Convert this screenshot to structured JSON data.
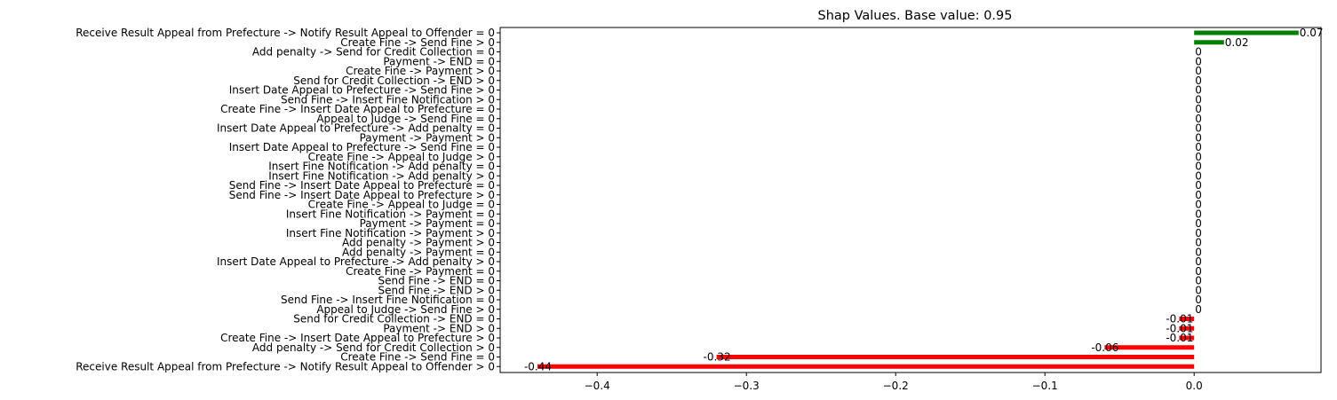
{
  "chart_data": {
    "type": "bar",
    "orientation": "horizontal",
    "title": "Shap Values. Base value: 0.95",
    "xlabel": "",
    "ylabel": "",
    "xlim": [
      -0.465,
      0.085
    ],
    "xticks": [
      -0.4,
      -0.3,
      -0.2,
      -0.1,
      0.0
    ],
    "xtick_labels": [
      "−0.4",
      "−0.3",
      "−0.2",
      "−0.1",
      "0.0"
    ],
    "grid": false,
    "colors": {
      "positive": "#008000",
      "negative": "#ff0000",
      "axis": "#000000"
    },
    "bars": [
      {
        "label": "Receive Result Appeal from Prefecture -> Notify Result Appeal to Offender = 0",
        "value": 0.07,
        "display": "0.07"
      },
      {
        "label": "Create Fine -> Send Fine > 0",
        "value": 0.02,
        "display": "0.02"
      },
      {
        "label": "Add penalty -> Send for Credit Collection = 0",
        "value": 0,
        "display": "0"
      },
      {
        "label": "Payment -> END = 0",
        "value": 0,
        "display": "0"
      },
      {
        "label": "Create Fine -> Payment > 0",
        "value": 0,
        "display": "0"
      },
      {
        "label": "Send for Credit Collection -> END > 0",
        "value": 0,
        "display": "0"
      },
      {
        "label": "Insert Date Appeal to Prefecture -> Send Fine > 0",
        "value": 0,
        "display": "0"
      },
      {
        "label": "Send Fine -> Insert Fine Notification > 0",
        "value": 0,
        "display": "0"
      },
      {
        "label": "Create Fine -> Insert Date Appeal to Prefecture = 0",
        "value": 0,
        "display": "0"
      },
      {
        "label": "Appeal to Judge -> Send Fine = 0",
        "value": 0,
        "display": "0"
      },
      {
        "label": "Insert Date Appeal to Prefecture -> Add penalty = 0",
        "value": 0,
        "display": "0"
      },
      {
        "label": "Payment -> Payment > 0",
        "value": 0,
        "display": "0"
      },
      {
        "label": "Insert Date Appeal to Prefecture -> Send Fine = 0",
        "value": 0,
        "display": "0"
      },
      {
        "label": "Create Fine -> Appeal to Judge > 0",
        "value": 0,
        "display": "0"
      },
      {
        "label": "Insert Fine Notification -> Add penalty = 0",
        "value": 0,
        "display": "0"
      },
      {
        "label": "Insert Fine Notification -> Add penalty > 0",
        "value": 0,
        "display": "0"
      },
      {
        "label": "Send Fine -> Insert Date Appeal to Prefecture = 0",
        "value": 0,
        "display": "0"
      },
      {
        "label": "Send Fine -> Insert Date Appeal to Prefecture > 0",
        "value": 0,
        "display": "0"
      },
      {
        "label": "Create Fine -> Appeal to Judge = 0",
        "value": 0,
        "display": "0"
      },
      {
        "label": "Insert Fine Notification -> Payment = 0",
        "value": 0,
        "display": "0"
      },
      {
        "label": "Payment -> Payment = 0",
        "value": 0,
        "display": "0"
      },
      {
        "label": "Insert Fine Notification -> Payment > 0",
        "value": 0,
        "display": "0"
      },
      {
        "label": "Add penalty -> Payment > 0",
        "value": 0,
        "display": "0"
      },
      {
        "label": "Add penalty -> Payment = 0",
        "value": 0,
        "display": "0"
      },
      {
        "label": "Insert Date Appeal to Prefecture -> Add penalty > 0",
        "value": 0,
        "display": "0"
      },
      {
        "label": "Create Fine -> Payment = 0",
        "value": 0,
        "display": "0"
      },
      {
        "label": "Send Fine -> END = 0",
        "value": 0,
        "display": "0"
      },
      {
        "label": "Send Fine -> END > 0",
        "value": 0,
        "display": "0"
      },
      {
        "label": "Send Fine -> Insert Fine Notification = 0",
        "value": 0,
        "display": "0"
      },
      {
        "label": "Appeal to Judge -> Send Fine > 0",
        "value": 0,
        "display": "0"
      },
      {
        "label": "Send for Credit Collection -> END = 0",
        "value": -0.01,
        "display": "-0.01"
      },
      {
        "label": "Payment -> END > 0",
        "value": -0.01,
        "display": "-0.01"
      },
      {
        "label": "Create Fine -> Insert Date Appeal to Prefecture > 0",
        "value": -0.01,
        "display": "-0.01"
      },
      {
        "label": "Add penalty -> Send for Credit Collection > 0",
        "value": -0.06,
        "display": "-0.06"
      },
      {
        "label": "Create Fine -> Send Fine = 0",
        "value": -0.32,
        "display": "-0.32"
      },
      {
        "label": "Receive Result Appeal from Prefecture -> Notify Result Appeal to Offender > 0",
        "value": -0.44,
        "display": "-0.44"
      }
    ]
  }
}
